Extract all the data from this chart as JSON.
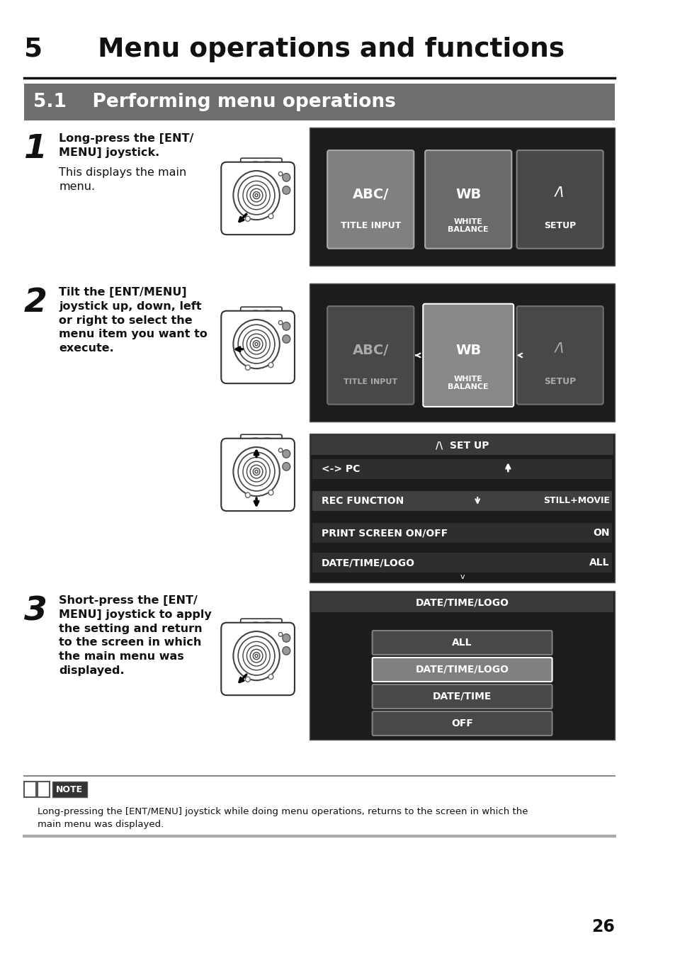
{
  "page_bg": "#ffffff",
  "chapter_title": "5      Menu operations and functions",
  "section_title": "5.1    Performing menu operations",
  "step1_num": "1",
  "step1_bold": "Long-press the [ENT/\nMENU] joystick.",
  "step1_normal": "This displays the main\nmenu.",
  "step2_num": "2",
  "step2_bold": "Tilt the [ENT/MENU]\njoystick up, down, left\nor right to select the\nmenu item you want to\nexecute.",
  "step3_num": "3",
  "step3_bold": "Short-press the [ENT/\nMENU] joystick to apply\nthe setting and return\nto the screen in which\nthe main menu was\ndisplayed.",
  "note_text": "Long-pressing the [ENT/MENU] joystick while doing menu operations, returns to the screen in which the\nmain menu was displayed.",
  "page_num": "26",
  "section_bg": "#6e6e6e",
  "panel_bg": "#1c1c1c",
  "panel_border": "#555555"
}
